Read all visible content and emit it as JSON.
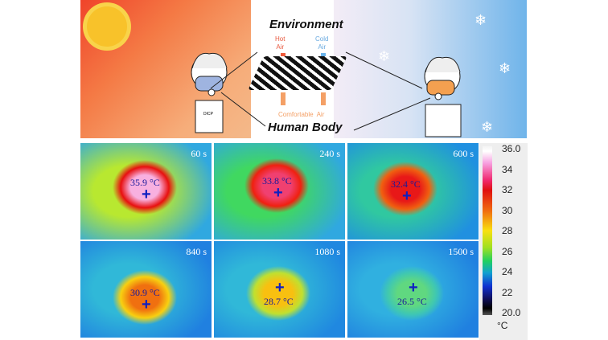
{
  "top": {
    "environment": "Environment",
    "hot_air": [
      "Hot",
      "Air"
    ],
    "cold_air": [
      "Cold",
      "Air"
    ],
    "comfortable_air": "Comfortable  Air",
    "human_body": "Human Body",
    "shirt_label": "DICP"
  },
  "panels": [
    {
      "time": "60 s",
      "temp": "35.9 °C",
      "spot": "#f8b0e0",
      "ring": "#e81010",
      "bg": "#b8e830",
      "side": "#30a8e0"
    },
    {
      "time": "240 s",
      "temp": "33.8 °C",
      "spot": "#f04070",
      "ring": "#f02010",
      "bg": "#40d860",
      "side": "#30a8e0"
    },
    {
      "time": "600 s",
      "temp": "32.4 °C",
      "spot": "#e81818",
      "ring": "#f06010",
      "bg": "#30c8a0",
      "side": "#2090e0"
    },
    {
      "time": "840 s",
      "temp": "30.9 °C",
      "spot": "#f07010",
      "ring": "#f8d010",
      "bg": "#30b8d8",
      "side": "#2080e0"
    },
    {
      "time": "1080 s",
      "temp": "28.7 °C",
      "spot": "#f8c010",
      "ring": "#c0e030",
      "bg": "#30b8d8",
      "side": "#2088e0"
    },
    {
      "time": "1500 s",
      "temp": "26.5 °C",
      "spot": "#60d880",
      "ring": "#40c8b0",
      "bg": "#30b0e0",
      "side": "#2080e0"
    }
  ],
  "colorbar": {
    "ticks": [
      "36.0",
      "34",
      "32",
      "30",
      "28",
      "26",
      "24",
      "22",
      "20.0"
    ],
    "unit": "°C",
    "range": [
      20,
      36
    ]
  }
}
